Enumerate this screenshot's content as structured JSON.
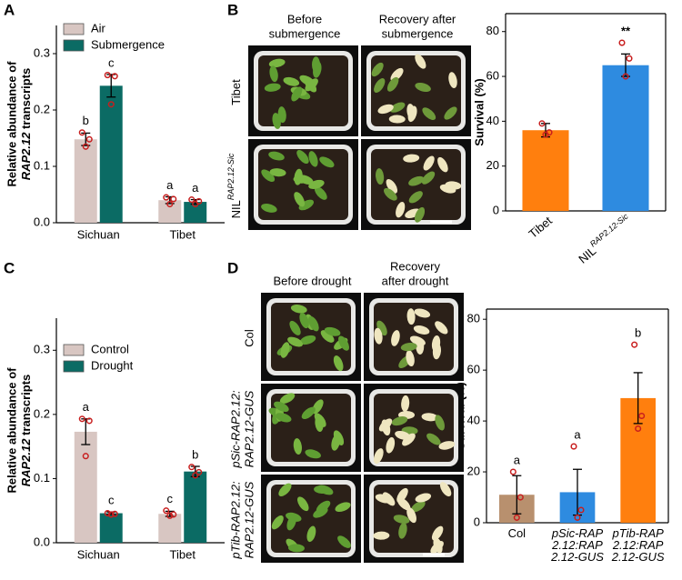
{
  "panels": [
    "A",
    "B",
    "C",
    "D"
  ],
  "chart_data": [
    {
      "type": "grouped_bar",
      "ylabel": "Relative abundance of",
      "ylabel_italic": "RAP2.12",
      "ylabel_end": "transcripts",
      "categories": [
        "Sichuan",
        "Tibet"
      ],
      "series": [
        {
          "name": "Air",
          "color": "#d8c6c2",
          "values": [
            0.148,
            0.04
          ],
          "errors": [
            0.011,
            0.006
          ],
          "letters": [
            "b",
            "a"
          ],
          "points": [
            [
              0.16,
              0.148,
              0.135
            ],
            [
              0.045,
              0.042,
              0.033
            ]
          ]
        },
        {
          "name": "Submergence",
          "color": "#0b6b64",
          "values": [
            0.243,
            0.037
          ],
          "errors": [
            0.02,
            0.004
          ],
          "letters": [
            "c",
            "a"
          ],
          "points": [
            [
              0.262,
              0.26,
              0.21
            ],
            [
              0.041,
              0.038,
              0.033
            ]
          ]
        }
      ],
      "ylim": [
        0,
        0.35
      ],
      "yticks": [
        {
          "value": 0,
          "label": "0.0"
        },
        0.1,
        0.2,
        0.3
      ],
      "axes_box": false,
      "point_color": "#c81e1e"
    },
    {
      "type": "bar",
      "ylabel": "Survival (%)",
      "categories": [
        "Tibet",
        "NIL"
      ],
      "category_superscripts": [
        null,
        "RAP2.12-Sic"
      ],
      "values": [
        36,
        65
      ],
      "errors": [
        3,
        5
      ],
      "colors": [
        "#ff7f0e",
        "#2e8be0"
      ],
      "points": [
        [
          39,
          35,
          34
        ],
        [
          75,
          68,
          60
        ]
      ],
      "annotations": [
        {
          "category": 1,
          "text": "**"
        }
      ],
      "ylim": [
        0,
        88
      ],
      "yticks": [
        0,
        20,
        40,
        60,
        80
      ],
      "axes_box": true,
      "xlabel_rotation": -40,
      "point_color": "#c81e1e"
    },
    {
      "type": "grouped_bar",
      "ylabel": "Relative abundance of",
      "ylabel_italic": "RAP2.12",
      "ylabel_end": "transcripts",
      "categories": [
        "Sichuan",
        "Tibet"
      ],
      "series": [
        {
          "name": "Control",
          "color": "#d8c6c2",
          "values": [
            0.173,
            0.045
          ],
          "errors": [
            0.02,
            0.004
          ],
          "letters": [
            "a",
            "c"
          ],
          "points": [
            [
              0.193,
              0.19,
              0.135
            ],
            [
              0.05,
              0.044,
              0.042
            ]
          ]
        },
        {
          "name": "Drought",
          "color": "#0b6b64",
          "values": [
            0.046,
            0.111
          ],
          "errors": [
            0.002,
            0.008
          ],
          "letters": [
            "c",
            "b"
          ],
          "points": [
            [
              0.046,
              0.045,
              0.044
            ],
            [
              0.118,
              0.11,
              0.105
            ]
          ]
        }
      ],
      "ylim": [
        0,
        0.35
      ],
      "yticks": [
        {
          "value": 0,
          "label": "0.0"
        },
        0.1,
        0.2,
        0.3
      ],
      "axes_box": false,
      "point_color": "#c81e1e"
    },
    {
      "type": "bar",
      "ylabel": "Survival (%)",
      "categories": [
        [
          "Col"
        ],
        [
          "pSic-RAP",
          "2.12:RAP",
          "2.12-GUS"
        ],
        [
          "pTib-RAP",
          "2.12:RAP",
          "2.12-GUS"
        ]
      ],
      "category_italic": [
        false,
        true,
        true
      ],
      "values": [
        11,
        12,
        49
      ],
      "errors": [
        7.5,
        9,
        10
      ],
      "colors": [
        "#b8906e",
        "#2e8be0",
        "#ff7f0e"
      ],
      "points": [
        [
          20,
          10,
          2
        ],
        [
          30,
          5,
          2
        ],
        [
          70,
          42,
          37
        ]
      ],
      "letters": [
        "a",
        "a",
        "b"
      ],
      "ylim": [
        0,
        84
      ],
      "yticks": [
        0,
        20,
        40,
        60,
        80
      ],
      "axes_box": true,
      "point_color": "#c81e1e"
    }
  ],
  "photos": [
    {
      "columns": [
        [
          "Before",
          "submergence"
        ],
        [
          "Recovery after",
          "submergence"
        ]
      ],
      "rows": [
        {
          "text": "Tibet",
          "italic": false
        },
        {
          "text": "NIL",
          "sup": "RAP2.12-Sic",
          "italic": false
        }
      ]
    },
    {
      "columns": [
        [
          "Before drought"
        ],
        [
          "Recovery",
          "after drought"
        ]
      ],
      "rows": [
        {
          "lines": [
            "Col"
          ],
          "italic": false
        },
        {
          "lines": [
            "pSic-RAP2.12:",
            "RAP2.12-GUS"
          ],
          "italic": true
        },
        {
          "lines": [
            "pTib-RAP2.12:",
            "RAP2.12-GUS"
          ],
          "italic": true
        }
      ]
    }
  ]
}
